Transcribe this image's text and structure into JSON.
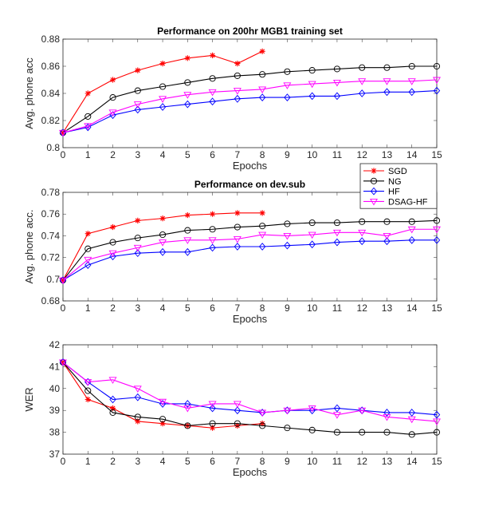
{
  "chart_data": [
    {
      "type": "line",
      "title": "Performance on 200hr MGB1 training set",
      "xlabel": "Epochs",
      "ylabel": "Avg. phone acc",
      "xlim": [
        0,
        15
      ],
      "ylim": [
        0.8,
        0.88
      ],
      "xticks": [
        "0",
        "1",
        "2",
        "3",
        "4",
        "5",
        "6",
        "7",
        "8",
        "9",
        "10",
        "11",
        "12",
        "13",
        "14",
        "15"
      ],
      "yticks": [
        "0.8",
        "0.82",
        "0.84",
        "0.86",
        "0.88"
      ],
      "grid": false,
      "series": [
        {
          "name": "SGD",
          "color": "#ff0000",
          "marker": "star",
          "x": [
            0,
            1,
            2,
            3,
            4,
            5,
            6,
            7,
            8
          ],
          "values": [
            0.811,
            0.84,
            0.85,
            0.857,
            0.862,
            0.866,
            0.868,
            0.862,
            0.871
          ]
        },
        {
          "name": "NG",
          "color": "#000000",
          "marker": "circle",
          "x": [
            0,
            1,
            2,
            3,
            4,
            5,
            6,
            7,
            8,
            9,
            10,
            11,
            12,
            13,
            14,
            15
          ],
          "values": [
            0.811,
            0.823,
            0.837,
            0.842,
            0.845,
            0.848,
            0.851,
            0.853,
            0.854,
            0.856,
            0.857,
            0.858,
            0.859,
            0.859,
            0.86,
            0.86
          ]
        },
        {
          "name": "HF",
          "color": "#0000ff",
          "marker": "diamond",
          "x": [
            0,
            1,
            2,
            3,
            4,
            5,
            6,
            7,
            8,
            9,
            10,
            11,
            12,
            13,
            14,
            15
          ],
          "values": [
            0.811,
            0.815,
            0.824,
            0.828,
            0.83,
            0.832,
            0.834,
            0.836,
            0.837,
            0.837,
            0.838,
            0.838,
            0.84,
            0.841,
            0.841,
            0.842
          ]
        },
        {
          "name": "DSAG-HF",
          "color": "#ff00ff",
          "marker": "triangle-down",
          "x": [
            0,
            1,
            2,
            3,
            4,
            5,
            6,
            7,
            8,
            9,
            10,
            11,
            12,
            13,
            14,
            15
          ],
          "values": [
            0.811,
            0.816,
            0.826,
            0.832,
            0.836,
            0.839,
            0.841,
            0.842,
            0.843,
            0.846,
            0.847,
            0.848,
            0.849,
            0.849,
            0.849,
            0.85
          ]
        }
      ]
    },
    {
      "type": "line",
      "title": "Performance on dev.sub",
      "xlabel": "Epochs",
      "ylabel": "Avg. phone acc.",
      "xlim": [
        0,
        15
      ],
      "ylim": [
        0.68,
        0.78
      ],
      "xticks": [
        "0",
        "1",
        "2",
        "3",
        "4",
        "5",
        "6",
        "7",
        "8",
        "9",
        "10",
        "11",
        "12",
        "13",
        "14",
        "15"
      ],
      "yticks": [
        "0.68",
        "0.7",
        "0.72",
        "0.74",
        "0.76",
        "0.78"
      ],
      "grid": false,
      "legend": {
        "placement": "top-right",
        "entries": [
          "SGD",
          "NG",
          "HF",
          "DSAG-HF"
        ]
      },
      "series": [
        {
          "name": "SGD",
          "color": "#ff0000",
          "marker": "star",
          "x": [
            0,
            1,
            2,
            3,
            4,
            5,
            6,
            7,
            8
          ],
          "values": [
            0.699,
            0.742,
            0.748,
            0.754,
            0.756,
            0.759,
            0.76,
            0.761,
            0.761
          ]
        },
        {
          "name": "NG",
          "color": "#000000",
          "marker": "circle",
          "x": [
            0,
            1,
            2,
            3,
            4,
            5,
            6,
            7,
            8,
            9,
            10,
            11,
            12,
            13,
            14,
            15
          ],
          "values": [
            0.699,
            0.728,
            0.734,
            0.738,
            0.741,
            0.745,
            0.746,
            0.748,
            0.749,
            0.751,
            0.752,
            0.752,
            0.753,
            0.753,
            0.753,
            0.754
          ]
        },
        {
          "name": "HF",
          "color": "#0000ff",
          "marker": "diamond",
          "x": [
            0,
            1,
            2,
            3,
            4,
            5,
            6,
            7,
            8,
            9,
            10,
            11,
            12,
            13,
            14,
            15
          ],
          "values": [
            0.699,
            0.713,
            0.721,
            0.724,
            0.725,
            0.725,
            0.729,
            0.73,
            0.73,
            0.731,
            0.732,
            0.734,
            0.735,
            0.735,
            0.736,
            0.736
          ]
        },
        {
          "name": "DSAG-HF",
          "color": "#ff00ff",
          "marker": "triangle-down",
          "x": [
            0,
            1,
            2,
            3,
            4,
            5,
            6,
            7,
            8,
            9,
            10,
            11,
            12,
            13,
            14,
            15
          ],
          "values": [
            0.699,
            0.718,
            0.724,
            0.729,
            0.734,
            0.736,
            0.736,
            0.737,
            0.741,
            0.74,
            0.741,
            0.743,
            0.743,
            0.74,
            0.746,
            0.746
          ]
        }
      ]
    },
    {
      "type": "line",
      "title": "",
      "xlabel": "Epochs",
      "ylabel": "WER",
      "xlim": [
        0,
        15
      ],
      "ylim": [
        37,
        42
      ],
      "xticks": [
        "0",
        "1",
        "2",
        "3",
        "4",
        "5",
        "6",
        "7",
        "8",
        "9",
        "10",
        "11",
        "12",
        "13",
        "14",
        "15"
      ],
      "yticks": [
        "37",
        "38",
        "39",
        "40",
        "41",
        "42"
      ],
      "grid": false,
      "series": [
        {
          "name": "SGD",
          "color": "#ff0000",
          "marker": "star",
          "x": [
            0,
            1,
            2,
            3,
            4,
            5,
            6,
            7,
            8
          ],
          "values": [
            41.2,
            39.5,
            39.1,
            38.5,
            38.4,
            38.3,
            38.2,
            38.3,
            38.4
          ]
        },
        {
          "name": "NG",
          "color": "#000000",
          "marker": "circle",
          "x": [
            0,
            1,
            2,
            3,
            4,
            5,
            6,
            7,
            8,
            9,
            10,
            11,
            12,
            13,
            14,
            15
          ],
          "values": [
            41.2,
            39.9,
            38.9,
            38.7,
            38.6,
            38.3,
            38.4,
            38.4,
            38.3,
            38.2,
            38.1,
            38.0,
            38.0,
            38.0,
            37.9,
            38.0
          ]
        },
        {
          "name": "HF",
          "color": "#0000ff",
          "marker": "diamond",
          "x": [
            0,
            1,
            2,
            3,
            4,
            5,
            6,
            7,
            8,
            9,
            10,
            11,
            12,
            13,
            14,
            15
          ],
          "values": [
            41.2,
            40.3,
            39.5,
            39.6,
            39.3,
            39.3,
            39.1,
            39.0,
            38.9,
            39.0,
            39.0,
            39.1,
            39.0,
            38.9,
            38.9,
            38.8
          ]
        },
        {
          "name": "DSAG-HF",
          "color": "#ff00ff",
          "marker": "triangle-down",
          "x": [
            0,
            1,
            2,
            3,
            4,
            5,
            6,
            7,
            8,
            9,
            10,
            11,
            12,
            13,
            14,
            15
          ],
          "values": [
            41.2,
            40.3,
            40.4,
            40.0,
            39.4,
            39.1,
            39.3,
            39.3,
            38.9,
            39.0,
            39.1,
            38.8,
            39.0,
            38.7,
            38.6,
            38.5
          ]
        }
      ]
    }
  ]
}
